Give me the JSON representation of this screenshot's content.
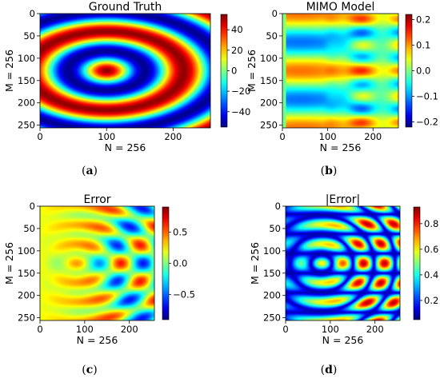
{
  "chart_data": [
    {
      "type": "heatmap",
      "title": "Ground Truth",
      "xlabel": "N = 256",
      "ylabel": "M = 256",
      "xlim": [
        0,
        256
      ],
      "ylim": [
        256,
        0
      ],
      "x_ticks": [
        "0",
        "100",
        "200"
      ],
      "y_ticks": [
        "0",
        "50",
        "100",
        "150",
        "200",
        "250"
      ],
      "colormap": "jet",
      "color_range": [
        -55,
        55
      ],
      "colorbar_ticks": [
        "40",
        "20",
        "0",
        "−20",
        "−40"
      ],
      "colorbar_values": [
        40,
        20,
        0,
        -20,
        -40
      ],
      "caption": [
        "(",
        "a",
        ")"
      ]
    },
    {
      "type": "heatmap",
      "title": "MIMO Model",
      "xlabel": "N = 256",
      "ylabel": "M = 256",
      "xlim": [
        0,
        256
      ],
      "ylim": [
        256,
        0
      ],
      "x_ticks": [
        "0",
        "100",
        "200"
      ],
      "y_ticks": [
        "0",
        "50",
        "100",
        "150",
        "200",
        "250"
      ],
      "colormap": "jet",
      "color_range": [
        -0.22,
        0.22
      ],
      "colorbar_ticks": [
        "0.2",
        "0.1",
        "0.0",
        "−0.1",
        "−0.2"
      ],
      "colorbar_values": [
        0.2,
        0.1,
        0.0,
        -0.1,
        -0.2
      ],
      "caption": [
        "(",
        "b",
        ")"
      ]
    },
    {
      "type": "heatmap",
      "title": "Error",
      "xlabel": "N = 256",
      "ylabel": "M = 256",
      "xlim": [
        0,
        256
      ],
      "ylim": [
        256,
        0
      ],
      "x_ticks": [
        "0",
        "100",
        "200"
      ],
      "y_ticks": [
        "0",
        "50",
        "100",
        "150",
        "200",
        "250"
      ],
      "colormap": "jet",
      "color_range": [
        -0.9,
        0.9
      ],
      "colorbar_ticks": [
        "0.5",
        "0.0",
        "−0.5"
      ],
      "colorbar_values": [
        0.5,
        0.0,
        -0.5
      ],
      "caption": [
        "(",
        "c",
        ")"
      ]
    },
    {
      "type": "heatmap",
      "title": "|Error|",
      "xlabel": "N = 256",
      "ylabel": "M = 256",
      "xlim": [
        0,
        256
      ],
      "ylim": [
        256,
        0
      ],
      "x_ticks": [
        "0",
        "100",
        "200"
      ],
      "y_ticks": [
        "0",
        "50",
        "100",
        "150",
        "200",
        "250"
      ],
      "colormap": "jet",
      "color_range": [
        0.05,
        0.93
      ],
      "colorbar_ticks": [
        "0.8",
        "0.6",
        "0.4",
        "0.2"
      ],
      "colorbar_values": [
        0.8,
        0.6,
        0.4,
        0.2
      ],
      "caption": [
        "(",
        "d",
        ")"
      ]
    }
  ]
}
